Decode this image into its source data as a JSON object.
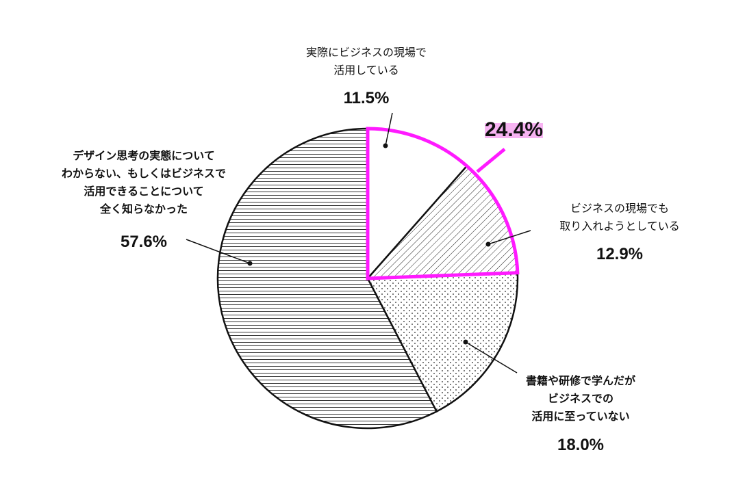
{
  "chart_data": {
    "type": "pie",
    "categories": [
      "実際にビジネスの現場で\n活用している",
      "ビジネスの現場でも\n取り入れようとしている",
      "書籍や研修で学んだが\nビジネスでの\n活用に至っていない",
      "デザイン思考の実態について\nわからない、もしくはビジネスで\n活用できることについて\n全く知らなかった"
    ],
    "values": [
      11.5,
      12.9,
      18.0,
      57.6
    ],
    "value_labels": [
      "11.5%",
      "12.9%",
      "18.0%",
      "57.6%"
    ],
    "patterns": [
      "none",
      "diagonal",
      "dots",
      "horizontal"
    ],
    "highlight": {
      "value": 24.4,
      "value_label": "24.4%",
      "color": "#ff1aff"
    }
  }
}
